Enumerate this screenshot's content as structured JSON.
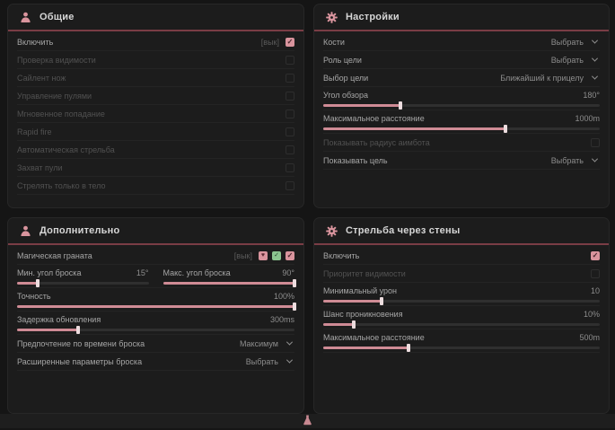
{
  "colors": {
    "accent": "#d9949d",
    "header_line": "#7a3d45",
    "green": "#8bc48f",
    "panel_bg": "#1c1c1c"
  },
  "panels": {
    "general": {
      "title": "Общие",
      "icon": "person-icon",
      "rows": [
        {
          "label": "Включить",
          "suffix": "[вык]",
          "type": "checkbox",
          "checked": true
        },
        {
          "label": "Проверка видимости",
          "type": "checkbox",
          "checked": false
        },
        {
          "label": "Сайлент нож",
          "type": "checkbox",
          "checked": false
        },
        {
          "label": "Управление пулями",
          "type": "checkbox",
          "checked": false
        },
        {
          "label": "Мгновенное попадание",
          "type": "checkbox",
          "checked": false
        },
        {
          "label": "Rapid fire",
          "type": "checkbox",
          "checked": false
        },
        {
          "label": "Автоматическая стрельба",
          "type": "checkbox",
          "checked": false
        },
        {
          "label": "Захват пули",
          "type": "checkbox",
          "checked": false
        },
        {
          "label": "Стрелять только в тело",
          "type": "checkbox",
          "checked": false
        }
      ]
    },
    "settings": {
      "title": "Настройки",
      "icon": "gear-icon",
      "rows": [
        {
          "label": "Кости",
          "type": "select",
          "value": "Выбрать"
        },
        {
          "label": "Роль цели",
          "type": "select",
          "value": "Выбрать"
        },
        {
          "label": "Выбор цели",
          "type": "select",
          "value": "Ближайший к прицелу"
        },
        {
          "label": "Угол обзора",
          "type": "slider",
          "value": "180°",
          "percent": 28
        },
        {
          "label": "Максимальное расстояние",
          "type": "slider",
          "value": "1000m",
          "percent": 66
        },
        {
          "label": "Показывать радиус аимбота",
          "type": "checkbox",
          "checked": false
        },
        {
          "label": "Показывать цель",
          "type": "select",
          "value": "Выбрать"
        }
      ]
    },
    "additional": {
      "title": "Дополнительно",
      "icon": "person-icon",
      "rows": [
        {
          "label": "Магическая граната",
          "suffix": "[вык]",
          "type": "checkbox",
          "checked": true,
          "extra_icons": [
            "heart-icon",
            "check-circle-icon"
          ]
        },
        {
          "label": "Мин. угол броска",
          "type": "slider",
          "value": "15°",
          "percent": 16
        },
        {
          "label": "Макс. угол броска",
          "type": "slider",
          "value": "90°",
          "percent": 100
        },
        {
          "label": "Точность",
          "type": "slider",
          "value": "100%",
          "percent": 100
        },
        {
          "label": "Задержка обновления",
          "type": "slider",
          "value": "300ms",
          "percent": 22
        },
        {
          "label": "Предпочтение по времени броска",
          "type": "select",
          "value": "Максимум"
        },
        {
          "label": "Расширенные параметры броска",
          "type": "select",
          "value": "Выбрать"
        }
      ]
    },
    "walls": {
      "title": "Стрельба через стены",
      "icon": "gear-icon",
      "rows": [
        {
          "label": "Включить",
          "type": "checkbox",
          "checked": true
        },
        {
          "label": "Приоритет видимости",
          "type": "checkbox",
          "checked": false
        },
        {
          "label": "Минимальный урон",
          "type": "slider",
          "value": "10",
          "percent": 21
        },
        {
          "label": "Шанс проникновения",
          "type": "slider",
          "value": "10%",
          "percent": 11
        },
        {
          "label": "Максимальное расстояние",
          "type": "slider",
          "value": "500m",
          "percent": 31
        }
      ]
    }
  },
  "icons": {
    "check_glyph": "✓",
    "heart_glyph": "♥"
  }
}
